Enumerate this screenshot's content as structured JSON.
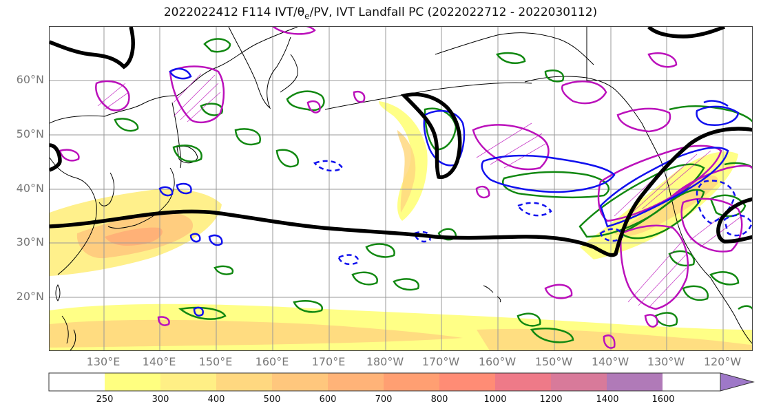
{
  "title": {
    "prefix": "2022022412 F114 IVT/θ",
    "sub": "e",
    "suffix": "/PV, IVT Landfall PC (2022022712 - 2022030112)"
  },
  "map": {
    "lat_labels": [
      "60°N",
      "50°N",
      "40°N",
      "30°N",
      "20°N"
    ],
    "lon_labels": [
      "130°E",
      "140°E",
      "150°E",
      "160°E",
      "170°E",
      "180°W",
      "170°W",
      "160°W",
      "150°W",
      "140°W",
      "130°W",
      "120°W"
    ],
    "layers": [
      "IVT shading",
      "θe contours (green)",
      "PV contours (magenta)",
      "IVT landfall PC contours (blue)",
      "jet contour (black)"
    ]
  },
  "colorbar": {
    "ticks": [
      "250",
      "300",
      "400",
      "500",
      "600",
      "700",
      "800",
      "1000",
      "1200",
      "1400",
      "1600"
    ],
    "colors": [
      "#ffffff",
      "#ffff80",
      "#ffef85",
      "#ffd880",
      "#ffc77d",
      "#ffb378",
      "#ff9f72",
      "#ff8c75",
      "#ee7a88",
      "#d87a9a",
      "#b07ab8",
      "#9e78c8"
    ],
    "extend": "max"
  }
}
